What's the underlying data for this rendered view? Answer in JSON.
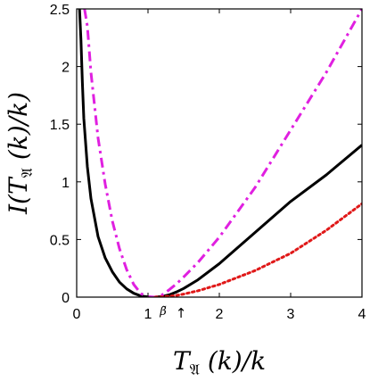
{
  "chart_data": {
    "type": "line",
    "xlabel": "Tᴘ (k)/k",
    "xlabel_parts": {
      "pre": "T",
      "sub": "𝔄",
      "post": " (k)/k"
    },
    "ylabel_parts": {
      "pre": "I(T",
      "sub": "𝔄",
      "post": " (k)/k)"
    },
    "xlim": [
      0,
      4
    ],
    "ylim": [
      0,
      2.5
    ],
    "xticks": [
      {
        "v": 0,
        "label": "0"
      },
      {
        "v": 1,
        "label": "1"
      },
      {
        "v": 2,
        "label": "2"
      },
      {
        "v": 3,
        "label": "3"
      },
      {
        "v": 4,
        "label": "4"
      }
    ],
    "yticks": [
      {
        "v": 0,
        "label": "0"
      },
      {
        "v": 0.5,
        "label": "0.5"
      },
      {
        "v": 1,
        "label": "1"
      },
      {
        "v": 1.5,
        "label": "1.5"
      },
      {
        "v": 2,
        "label": "2"
      },
      {
        "v": 2.5,
        "label": "2.5"
      }
    ],
    "grid": false,
    "annotation": {
      "text": "β̃",
      "arrow": "↑",
      "x": 1.1
    },
    "series": [
      {
        "color": "#000000",
        "style": "solid",
        "x": [
          0.04,
          0.06,
          0.08,
          0.1,
          0.15,
          0.2,
          0.3,
          0.4,
          0.5,
          0.6,
          0.7,
          0.8,
          0.9,
          1.0,
          1.05,
          1.1,
          1.2,
          1.3,
          1.4,
          1.5,
          1.7,
          2.0,
          2.5,
          3.0,
          3.5,
          4.0
        ],
        "y": [
          2.5,
          2.23,
          1.86,
          1.55,
          1.13,
          0.855,
          0.525,
          0.34,
          0.22,
          0.13,
          0.072,
          0.033,
          0.01,
          0.002,
          0.0,
          0.0,
          0.006,
          0.02,
          0.045,
          0.075,
          0.15,
          0.29,
          0.56,
          0.83,
          1.06,
          1.32
        ]
      },
      {
        "color": "#e020e0",
        "style": "dashdot",
        "x": [
          0.11,
          0.15,
          0.2,
          0.3,
          0.4,
          0.5,
          0.6,
          0.7,
          0.8,
          0.9,
          1.0,
          1.1,
          1.2,
          1.3,
          1.4,
          1.5,
          1.7,
          2.0,
          2.5,
          3.0,
          3.5,
          4.0
        ],
        "y": [
          2.5,
          2.35,
          1.95,
          1.38,
          0.98,
          0.66,
          0.42,
          0.24,
          0.11,
          0.03,
          0.004,
          0.0,
          0.02,
          0.065,
          0.115,
          0.175,
          0.3,
          0.52,
          0.95,
          1.45,
          1.95,
          2.5
        ]
      },
      {
        "color": "#e01818",
        "style": "dotted",
        "x": [
          1.1,
          1.2,
          1.3,
          1.4,
          1.5,
          1.7,
          2.0,
          2.5,
          3.0,
          3.5,
          4.0
        ],
        "y": [
          0.0,
          0.002,
          0.007,
          0.015,
          0.026,
          0.055,
          0.11,
          0.23,
          0.38,
          0.58,
          0.81
        ]
      }
    ]
  }
}
